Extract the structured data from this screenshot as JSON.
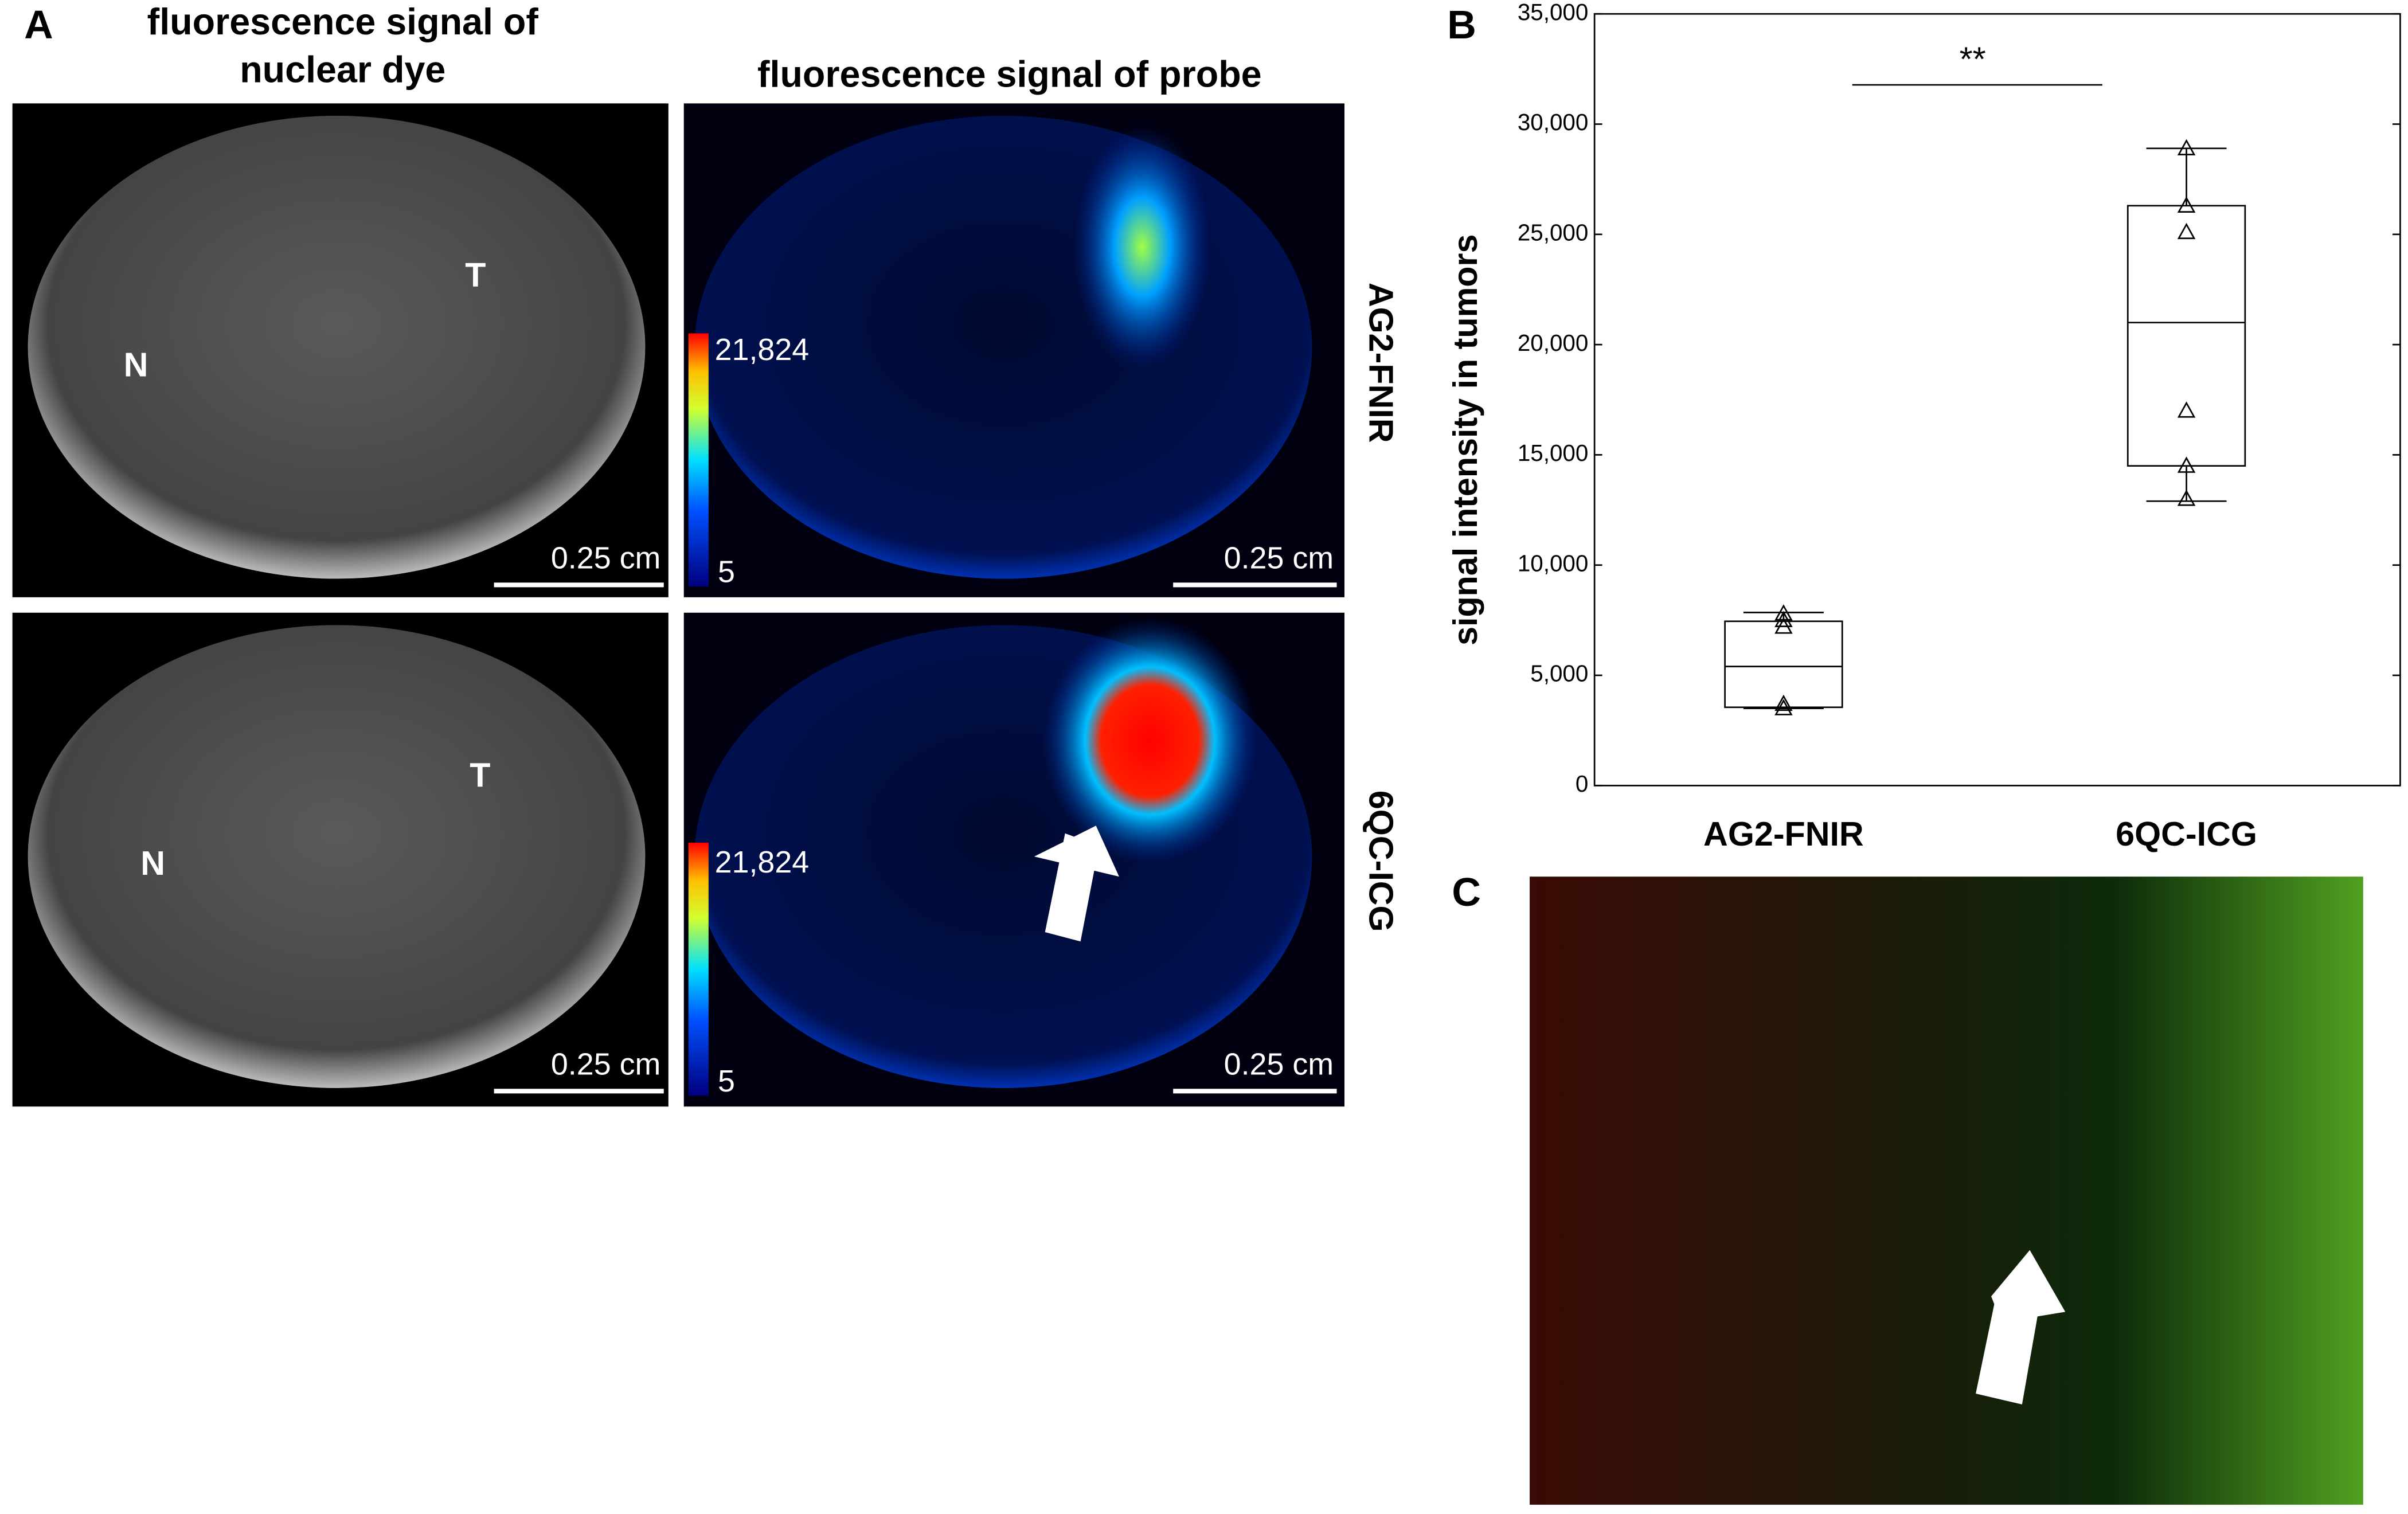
{
  "chart_data": {
    "type": "box",
    "ylabel": "signal intensity in tumors",
    "categories": [
      "AG2-FNIR",
      "6QC-ICG"
    ],
    "boxes": [
      {
        "min": 3500,
        "q1": 3550,
        "median": 5400,
        "q3": 7450,
        "max": 7850,
        "points": [
          7800,
          7500,
          7200,
          3700,
          3500
        ]
      },
      {
        "min": 12900,
        "q1": 14500,
        "median": 21000,
        "q3": 26300,
        "max": 28900,
        "points": [
          28900,
          26300,
          25100,
          17000,
          14500,
          13000
        ]
      }
    ],
    "ylim": [
      0,
      35000
    ],
    "yticks": [
      0,
      {
        "value": 5000,
        "label": "5,000"
      },
      {
        "value": 10000,
        "label": "10,000"
      },
      {
        "value": 15000,
        "label": "15,000"
      },
      {
        "value": 20000,
        "label": "20,000"
      },
      {
        "value": 25000,
        "label": "25,000"
      },
      {
        "value": 30000,
        "label": "30,000"
      },
      {
        "value": 35000,
        "label": "35,000"
      }
    ],
    "annotation": "**",
    "color": "#000000"
  },
  "panel_labels": [
    "A",
    "B",
    "C"
  ],
  "panel_a": {
    "column_titles": [
      [
        "fluorescence signal of",
        "nuclear dye"
      ],
      "fluorescence signal of probe"
    ],
    "row_labels": [
      "AG2-FNIR",
      "6QC-ICG"
    ],
    "region_labels": [
      "T",
      "N"
    ],
    "scale_bar": "0.25 cm",
    "colorbar": {
      "max": {
        "value": 21824,
        "label": "21,824"
      },
      "min": 5
    }
  }
}
